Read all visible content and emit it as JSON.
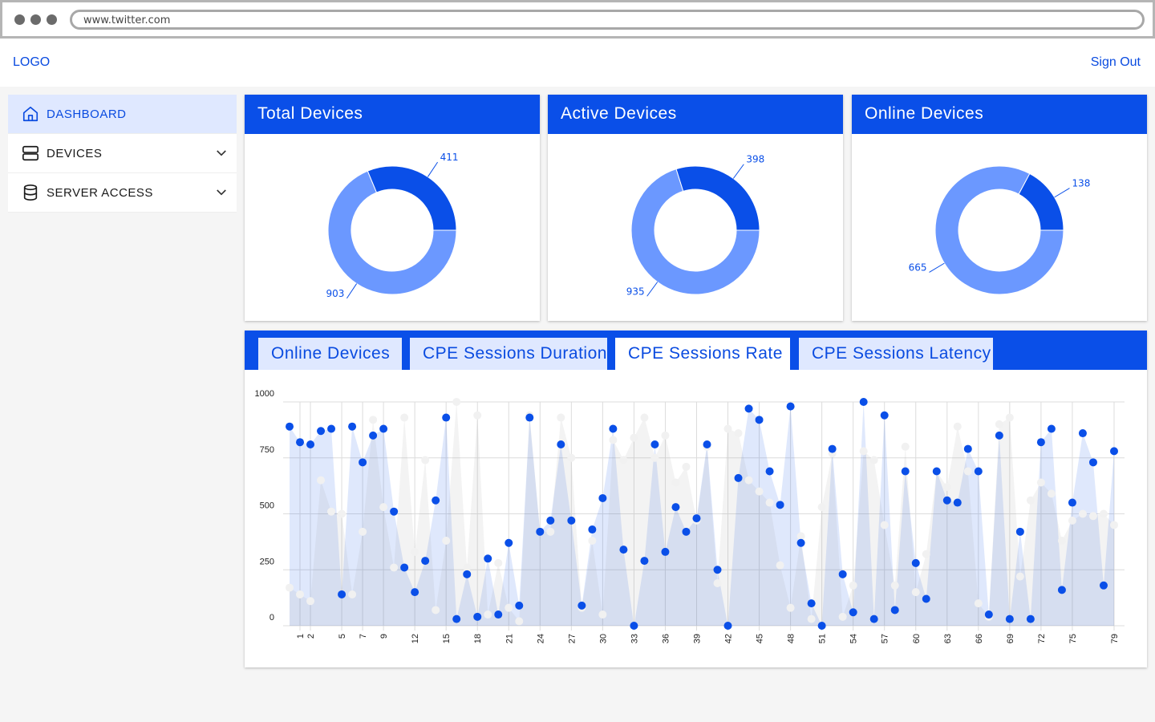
{
  "browser": {
    "url": "www.twitter.com"
  },
  "header": {
    "logo": "LOGO",
    "sign_out": "Sign Out"
  },
  "sidebar": {
    "items": [
      {
        "label": "DASHBOARD",
        "icon": "home-icon",
        "active": true
      },
      {
        "label": "DEVICES",
        "icon": "server-icon",
        "expandable": true
      },
      {
        "label": "SERVER ACCESS",
        "icon": "database-icon",
        "expandable": true
      }
    ]
  },
  "colors": {
    "accent": "#0a4fe8",
    "light": "#6b98ff",
    "tab_bg": "#dfe8ff"
  },
  "cards": [
    {
      "title": "Total Devices",
      "primary": 411,
      "secondary": 903
    },
    {
      "title": "Active Devices",
      "primary": 398,
      "secondary": 935
    },
    {
      "title": "Online Devices",
      "primary": 138,
      "secondary": 665
    }
  ],
  "tabs": [
    {
      "label": "Online Devices"
    },
    {
      "label": "CPE Sessions Duration"
    },
    {
      "label": "CPE Sessions Rate",
      "active": true
    },
    {
      "label": "CPE Sessions Latency"
    }
  ],
  "chart_data": {
    "type": "area",
    "ylim": [
      0,
      1000
    ],
    "yticks": [
      0,
      250,
      500,
      750,
      1000
    ],
    "xlim": [
      0,
      80
    ],
    "xticks": [
      1,
      2,
      5,
      7,
      9,
      12,
      15,
      18,
      21,
      24,
      27,
      30,
      33,
      36,
      39,
      42,
      45,
      48,
      51,
      54,
      57,
      60,
      63,
      66,
      69,
      72,
      75,
      79
    ],
    "grid": true,
    "series": [
      {
        "values": [
          890,
          820,
          810,
          870,
          880,
          140,
          890,
          730,
          850,
          880,
          510,
          260,
          150,
          290,
          560,
          930,
          30,
          230,
          40,
          300,
          50,
          370,
          90,
          930,
          420,
          470,
          810,
          470,
          90,
          430,
          570,
          880,
          340,
          0,
          290,
          810,
          330,
          530,
          420,
          480,
          810,
          250,
          0,
          660,
          970,
          920,
          690,
          540,
          980,
          370,
          100,
          0,
          790,
          230,
          60,
          1000,
          30,
          940,
          70,
          690,
          280,
          120,
          690,
          560,
          550,
          790,
          690,
          50,
          850,
          30,
          420,
          30,
          820,
          880,
          160,
          550,
          860,
          730,
          180,
          780
        ]
      },
      {
        "values": [
          170,
          140,
          110,
          650,
          510,
          500,
          140,
          420,
          920,
          530,
          260,
          930,
          330,
          740,
          70,
          380,
          1000,
          260,
          940,
          50,
          280,
          80,
          20,
          940,
          420,
          420,
          930,
          750,
          80,
          380,
          50,
          830,
          740,
          840,
          930,
          750,
          850,
          640,
          710,
          470,
          800,
          190,
          880,
          860,
          650,
          600,
          550,
          270,
          80,
          400,
          30,
          530,
          770,
          40,
          180,
          780,
          740,
          450,
          180,
          800,
          150,
          320,
          690,
          620,
          890,
          690,
          100,
          40,
          900,
          930,
          220,
          560,
          640,
          590,
          380,
          470,
          500,
          490,
          500,
          450
        ]
      }
    ]
  }
}
